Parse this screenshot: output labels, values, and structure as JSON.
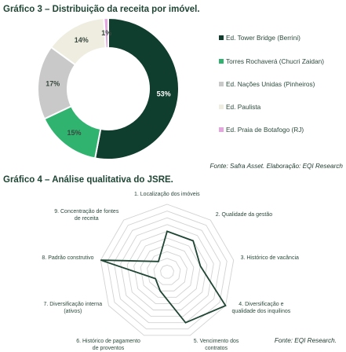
{
  "chart_data": [
    {
      "type": "pie",
      "variant": "donut",
      "title": "Gráfico 3 – Distribuição da receita por imóvel.",
      "source": "Fonte: Safra Asset. Elaboração: EQI Research",
      "legend_position": "right",
      "series": [
        {
          "name": "Ed. Tower Bridge (Berrini)",
          "value": 53,
          "label": "53%",
          "color": "#0f3d2e"
        },
        {
          "name": "Torres Rochaverá (Chucri Zaidan)",
          "value": 15,
          "label": "15%",
          "color": "#2fb36f"
        },
        {
          "name": "Ed. Nações Unidas (Pinheiros)",
          "value": 17,
          "label": "17%",
          "color": "#c9c9c9"
        },
        {
          "name": "Ed. Paulista",
          "value": 14,
          "label": "14%",
          "color": "#efece0"
        },
        {
          "name": "Ed. Praia de Botafogo (RJ)",
          "value": 1,
          "label": "1%",
          "color": "#e5a6e0"
        }
      ]
    },
    {
      "type": "radar",
      "title": "Gráfico 4 – Análise qualitativa do JSRE.",
      "source": "Fonte: EQI Research.",
      "grid_levels": 10,
      "max": 10,
      "axes": [
        "1. Localização dos imóveis",
        "2. Qualidade da gestão",
        "3. Histórico de vacância",
        "4. Diversificação e qualidade dos inquilinos",
        "5. Vencimento dos contratos",
        "6. Histórico de pagamento de proventos",
        "7. Diversificação interna (ativos)",
        "8. Padrão construtivo",
        "9. Concentração de fontes de receita"
      ],
      "axis_label_lines": [
        [
          "1. Localização dos imóveis"
        ],
        [
          "2. Qualidade da gestão"
        ],
        [
          "3. Histórico de vacância"
        ],
        [
          "4. Diversificação e",
          "qualidade dos inquilinos"
        ],
        [
          "5. Vencimento dos",
          "contratos"
        ],
        [
          "6. Histórico de pagamento",
          "de proventos"
        ],
        [
          "7. Diversificação interna",
          "(ativos)"
        ],
        [
          "8. Padrão construtivo"
        ],
        [
          "9. Concentração de fontes",
          "de receita"
        ]
      ],
      "values": [
        6,
        6,
        5,
        10,
        8,
        3,
        2,
        10,
        2
      ],
      "line_color": "#1f4634"
    }
  ]
}
